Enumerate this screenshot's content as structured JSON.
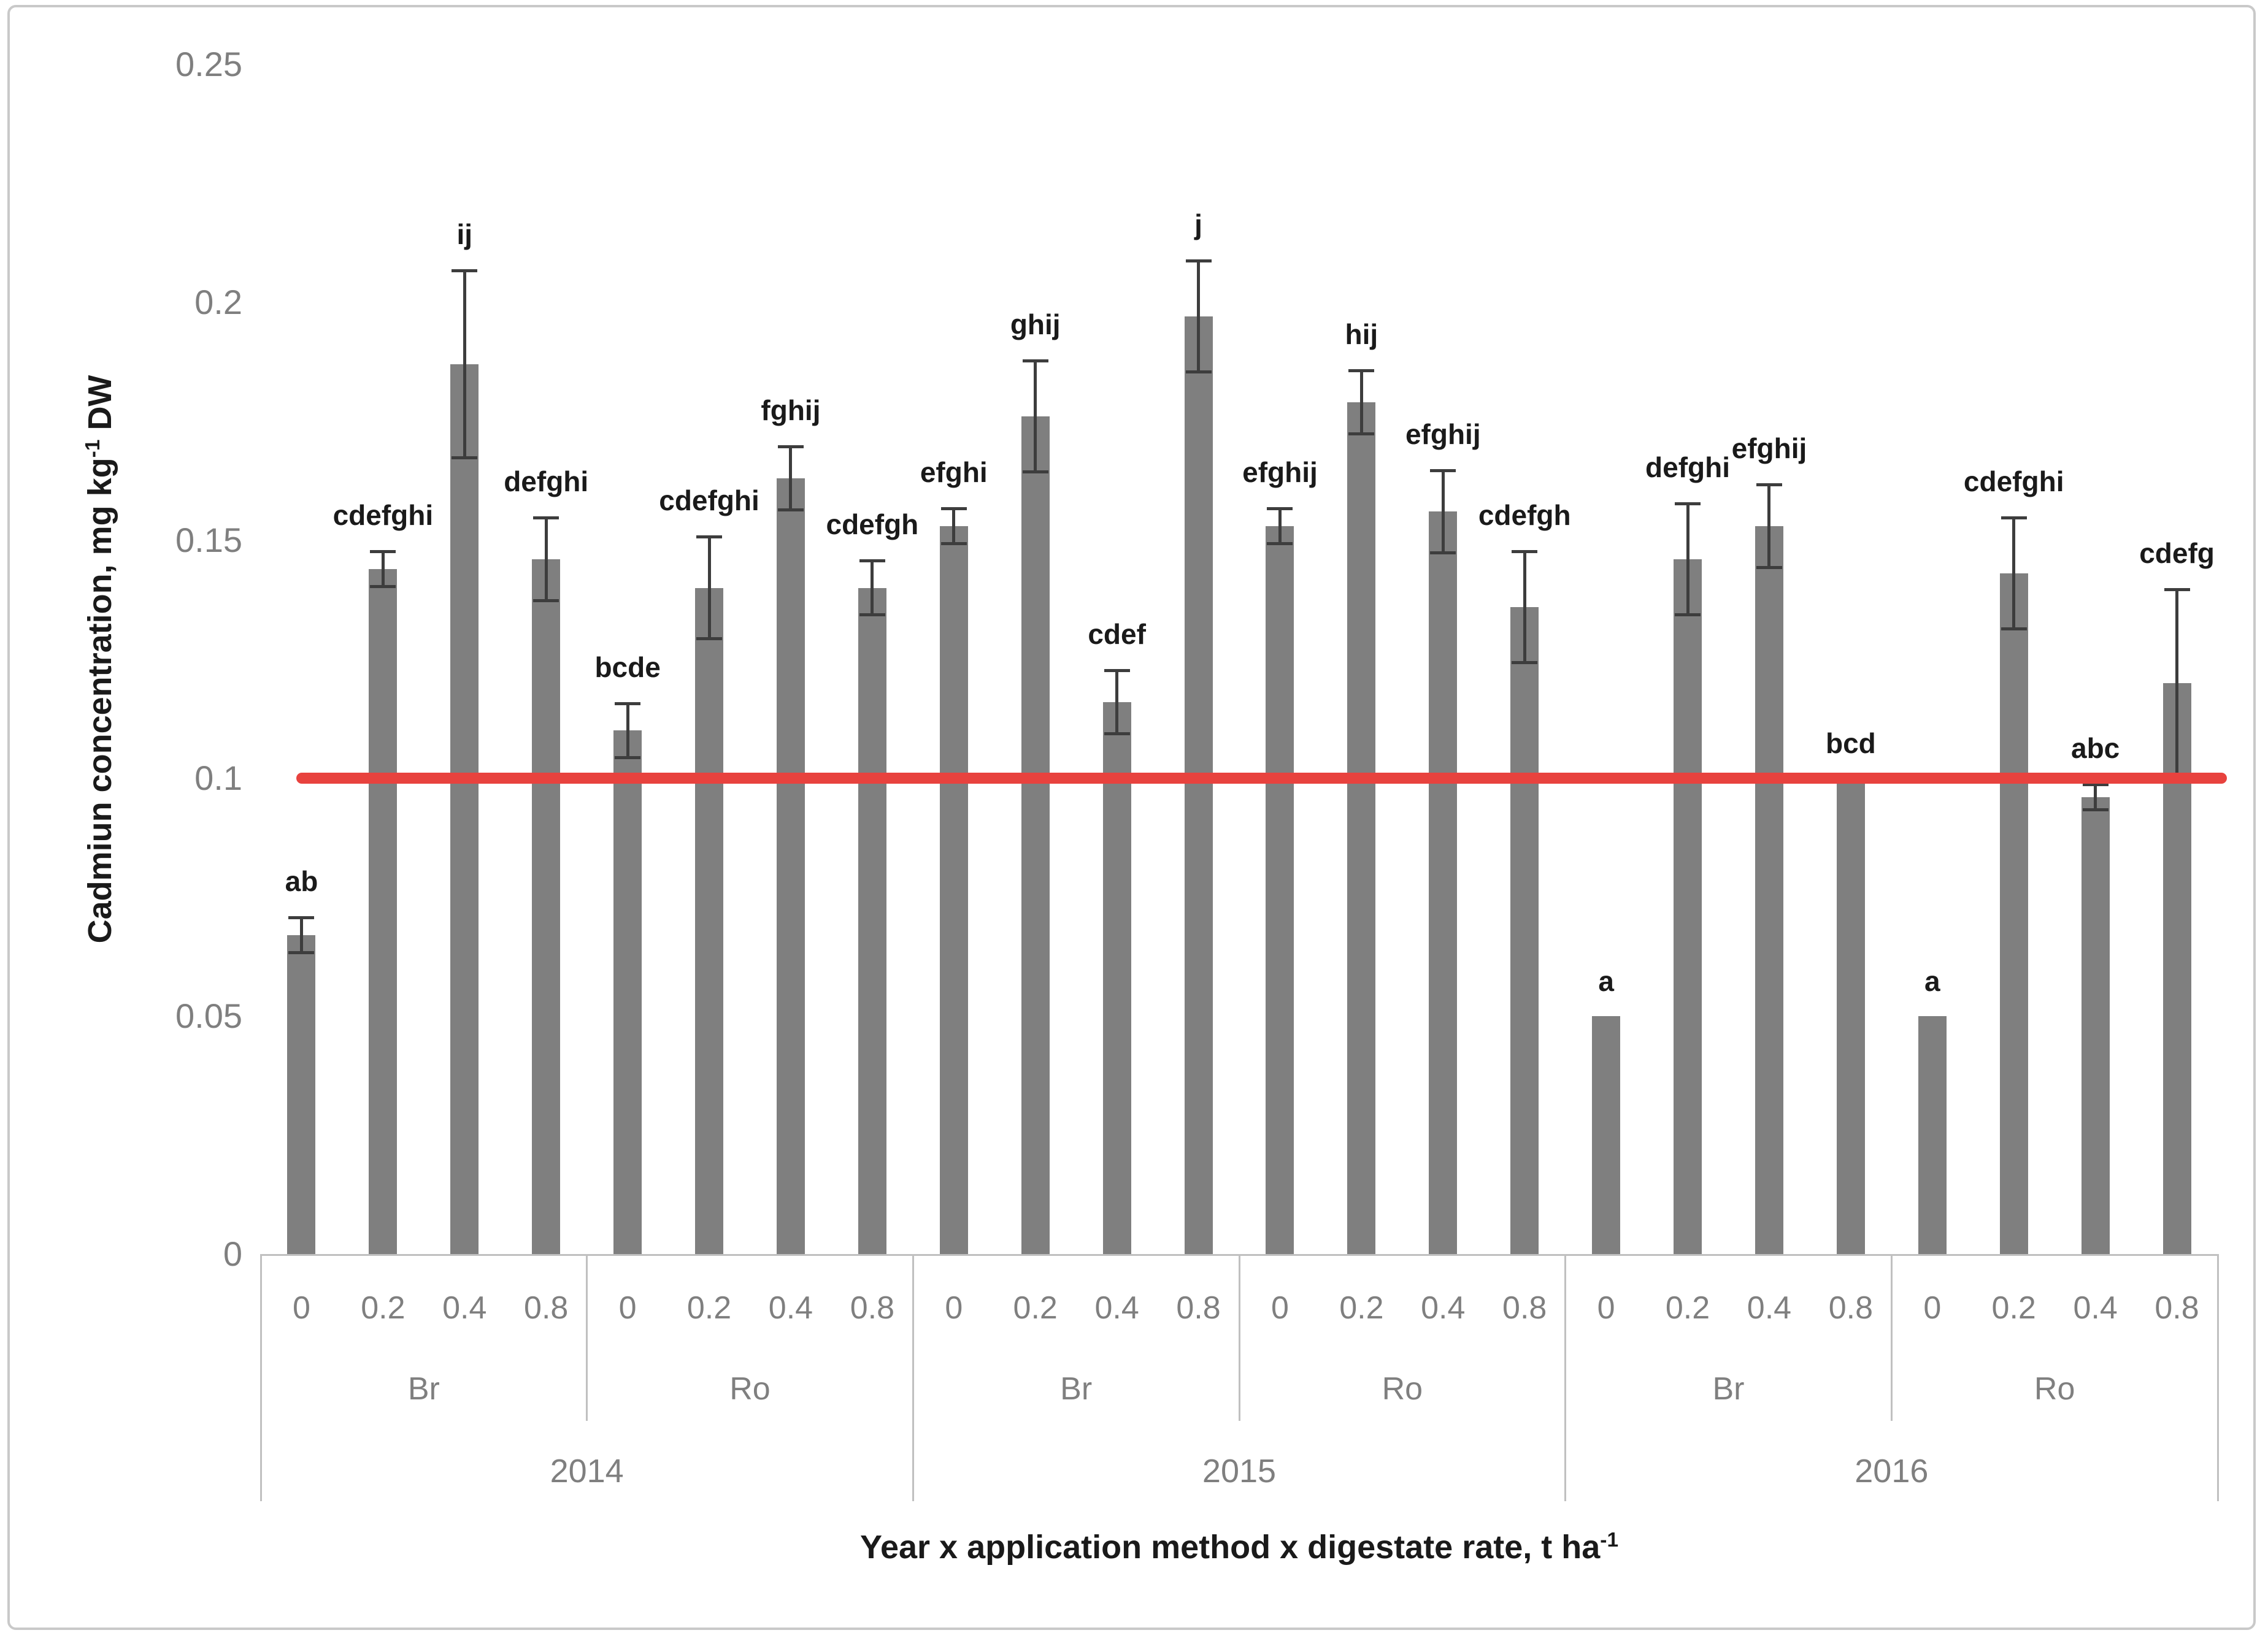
{
  "colors": {
    "bar_fill": "#7f7f7f",
    "error_bar": "#3d3d3d",
    "reference_line": "#e8423e",
    "axis_text_gray": "#7f7f7f",
    "separator_gray": "#c0c0c0",
    "frame_border": "#c9c9c9",
    "label_black": "#1a1a1a"
  },
  "y_axis": {
    "title": {
      "prefix": "Cadmiun concentration, mg kg",
      "sup": "-1",
      "suffix": " DW"
    },
    "tick_labels": [
      "0.25",
      "0.2",
      "0.15",
      "0.1",
      "0.05",
      "0"
    ]
  },
  "x_axis": {
    "title": {
      "prefix": "Year x application method x digestate rate, t ha",
      "sup": "-1"
    },
    "rate_labels": [
      "0",
      "0.2",
      "0.4",
      "0.8"
    ],
    "method_labels": [
      "Br",
      "Ro"
    ],
    "year_labels": [
      "2014",
      "2015",
      "2016"
    ]
  },
  "chart_data": {
    "type": "bar",
    "title": "",
    "xlabel": "Year x application method x digestate rate, t ha-1",
    "ylabel": "Cadmiun concentration, mg kg-1 DW",
    "ylim": [
      0,
      0.25
    ],
    "yticks": [
      0.25,
      0.2,
      0.15,
      0.1,
      0.05,
      0
    ],
    "grid": "off",
    "legend": "none",
    "reference_line": {
      "value": 0.1,
      "color": "#e8423e"
    },
    "groups": [
      {
        "year": "2014",
        "method": "Br",
        "bars": [
          {
            "rate": "0",
            "value": 0.067,
            "error": 0.004,
            "letters": "ab"
          },
          {
            "rate": "0.2",
            "value": 0.144,
            "error": 0.004,
            "letters": "cdefghi"
          },
          {
            "rate": "0.4",
            "value": 0.187,
            "error": 0.02,
            "letters": "ij"
          },
          {
            "rate": "0.8",
            "value": 0.146,
            "error": 0.009,
            "letters": "defghi"
          }
        ]
      },
      {
        "year": "2014",
        "method": "Ro",
        "bars": [
          {
            "rate": "0",
            "value": 0.11,
            "error": 0.006,
            "letters": "bcde"
          },
          {
            "rate": "0.2",
            "value": 0.14,
            "error": 0.011,
            "letters": "cdefghi"
          },
          {
            "rate": "0.4",
            "value": 0.163,
            "error": 0.007,
            "letters": "fghij"
          },
          {
            "rate": "0.8",
            "value": 0.14,
            "error": 0.006,
            "letters": "cdefgh"
          }
        ]
      },
      {
        "year": "2015",
        "method": "Br",
        "bars": [
          {
            "rate": "0",
            "value": 0.153,
            "error": 0.004,
            "letters": "efghi"
          },
          {
            "rate": "0.2",
            "value": 0.176,
            "error": 0.012,
            "letters": "ghij"
          },
          {
            "rate": "0.4",
            "value": 0.116,
            "error": 0.007,
            "letters": "cdef"
          },
          {
            "rate": "0.8",
            "value": 0.197,
            "error": 0.012,
            "letters": "j"
          }
        ]
      },
      {
        "year": "2015",
        "method": "Ro",
        "bars": [
          {
            "rate": "0",
            "value": 0.153,
            "error": 0.004,
            "letters": "efghij"
          },
          {
            "rate": "0.2",
            "value": 0.179,
            "error": 0.007,
            "letters": "hij"
          },
          {
            "rate": "0.4",
            "value": 0.156,
            "error": 0.009,
            "letters": "efghij"
          },
          {
            "rate": "0.8",
            "value": 0.136,
            "error": 0.012,
            "letters": "cdefgh"
          }
        ]
      },
      {
        "year": "2016",
        "method": "Br",
        "bars": [
          {
            "rate": "0",
            "value": 0.05,
            "error": 0,
            "letters": "a"
          },
          {
            "rate": "0.2",
            "value": 0.146,
            "error": 0.012,
            "letters": "defghi"
          },
          {
            "rate": "0.4",
            "value": 0.153,
            "error": 0.009,
            "letters": "efghij"
          },
          {
            "rate": "0.8",
            "value": 0.1,
            "error": 0,
            "letters": "bcd"
          }
        ]
      },
      {
        "year": "2016",
        "method": "Ro",
        "bars": [
          {
            "rate": "0",
            "value": 0.05,
            "error": 0,
            "letters": "a"
          },
          {
            "rate": "0.2",
            "value": 0.143,
            "error": 0.012,
            "letters": "cdefghi"
          },
          {
            "rate": "0.4",
            "value": 0.096,
            "error": 0.003,
            "letters": "abc"
          },
          {
            "rate": "0.8",
            "value": 0.12,
            "error": 0.02,
            "letters": "cdefg"
          }
        ]
      }
    ]
  }
}
